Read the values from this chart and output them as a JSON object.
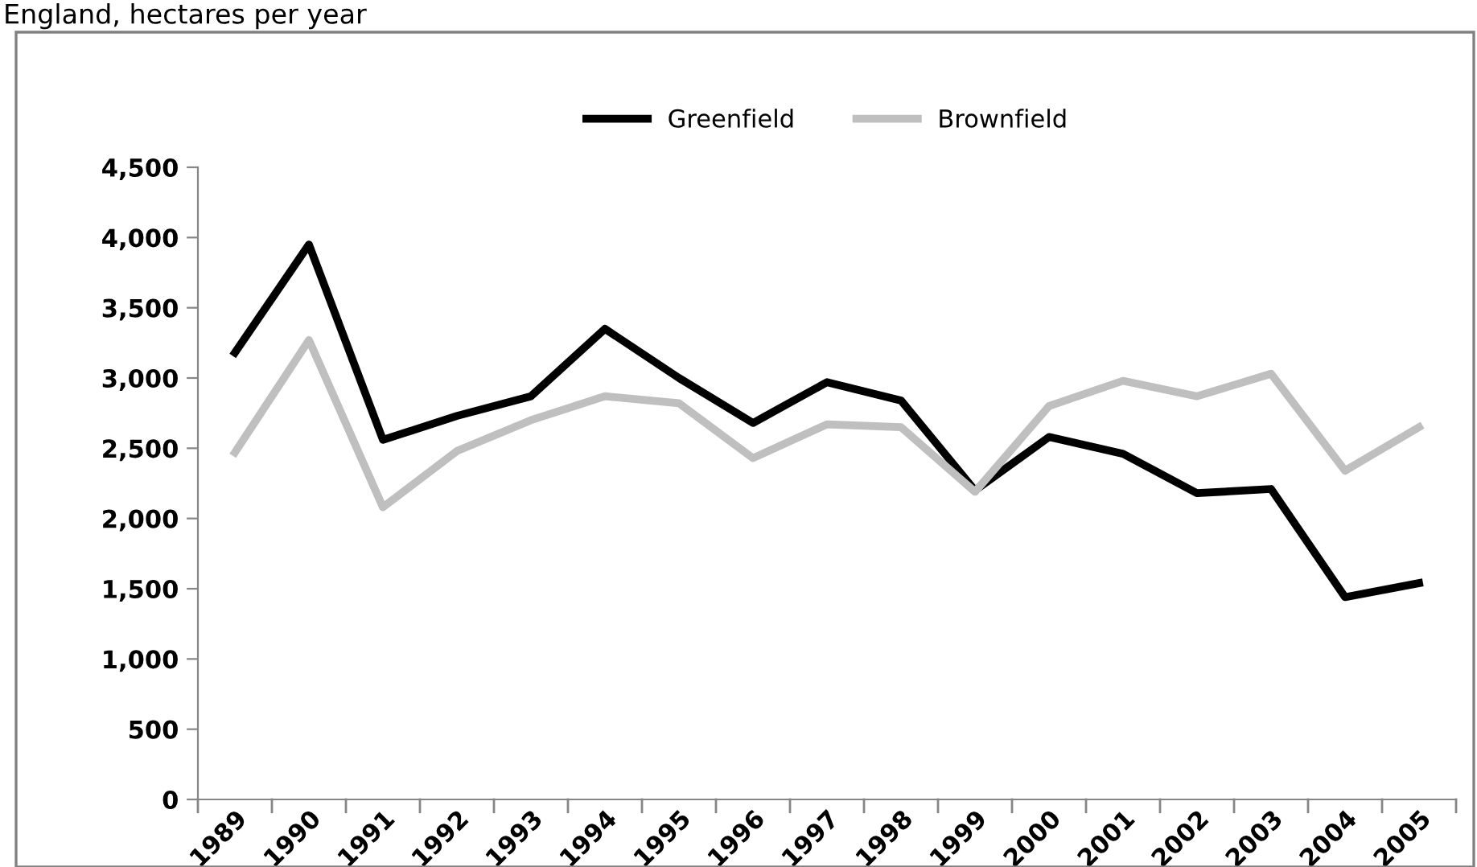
{
  "chart_data": {
    "type": "line",
    "title": "England, hectares per year",
    "categories": [
      "1989",
      "1990",
      "1991",
      "1992",
      "1993",
      "1994",
      "1995",
      "1996",
      "1997",
      "1998",
      "1999",
      "2000",
      "2001",
      "2002",
      "2003",
      "2004",
      "2005"
    ],
    "series": [
      {
        "name": "Greenfield",
        "color": "#000000",
        "values": [
          3180,
          3950,
          2560,
          2730,
          2870,
          3350,
          3000,
          2680,
          2970,
          2840,
          2200,
          2580,
          2460,
          2180,
          2210,
          1440,
          1540
        ]
      },
      {
        "name": "Brownfield",
        "color": "#bfbfbf",
        "values": [
          2470,
          3270,
          2080,
          2480,
          2700,
          2870,
          2820,
          2430,
          2670,
          2650,
          2190,
          2800,
          2980,
          2870,
          3030,
          2340,
          2650
        ]
      }
    ],
    "ylim": [
      0,
      4500
    ],
    "yticks": [
      {
        "value": 0,
        "label": "0"
      },
      {
        "value": 500,
        "label": "500"
      },
      {
        "value": 1000,
        "label": "1,000"
      },
      {
        "value": 1500,
        "label": "1,500"
      },
      {
        "value": 2000,
        "label": "2,000"
      },
      {
        "value": 2500,
        "label": "2,500"
      },
      {
        "value": 3000,
        "label": "3,000"
      },
      {
        "value": 3500,
        "label": "3,500"
      },
      {
        "value": 4000,
        "label": "4,000"
      },
      {
        "value": 4500,
        "label": "4,500"
      }
    ],
    "grid": false,
    "legend": "top",
    "marker": "none",
    "line_style": "solid"
  }
}
